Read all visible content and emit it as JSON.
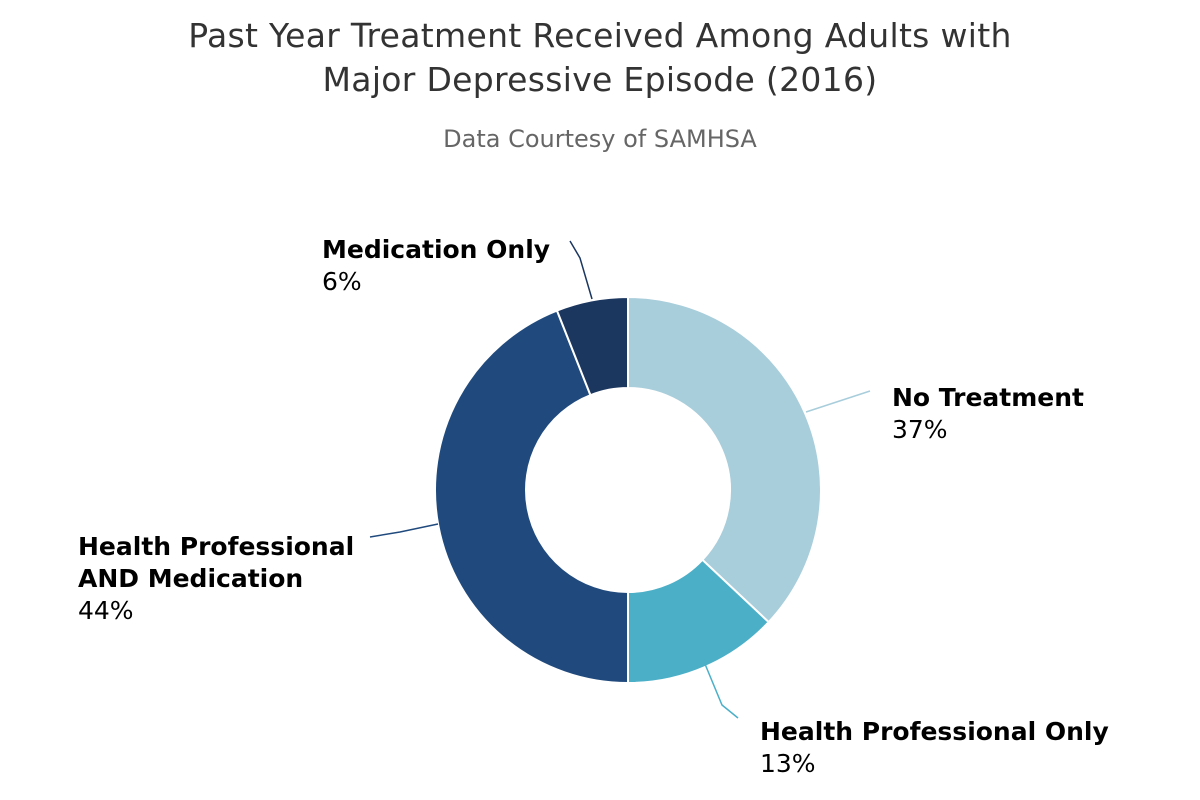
{
  "chart_data": {
    "type": "pie",
    "variant": "donut",
    "title_lines": [
      "Past Year Treatment Received Among Adults with",
      "Major Depressive Episode (2016)"
    ],
    "subtitle": "Data Courtesy of SAMHSA",
    "slices": [
      {
        "name": "No Treatment",
        "name_lines": [
          "No Treatment"
        ],
        "value": 37,
        "label": "37%",
        "color": "#a8cddb"
      },
      {
        "name": "Health Professional Only",
        "name_lines": [
          "Health Professional Only"
        ],
        "value": 13,
        "label": "13%",
        "color": "#4bafc8"
      },
      {
        "name": "Health Professional AND Medication",
        "name_lines": [
          "Health Professional",
          "AND Medication"
        ],
        "value": 44,
        "label": "44%",
        "color": "#204a7d"
      },
      {
        "name": "Medication Only",
        "name_lines": [
          "Medication Only"
        ],
        "value": 6,
        "label": "6%",
        "color": "#1b365f"
      }
    ]
  }
}
